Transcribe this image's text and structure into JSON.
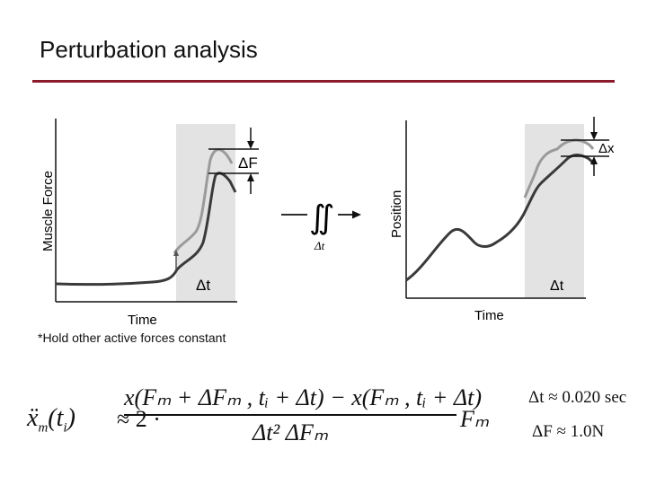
{
  "slide": {
    "title": "Perturbation analysis",
    "note": "*Hold other active forces constant"
  },
  "colors": {
    "rule": "#8b1a2b",
    "shade": "#e3e3e3",
    "trace_dark": "#3a3a3a",
    "trace_light": "#9a9a9a"
  },
  "left_plot": {
    "ylabel": "Muscle Force",
    "xlabel": "Time",
    "window_label": "Δt",
    "delta_label": "ΔF"
  },
  "operator": {
    "symbol": "∬",
    "label": "Δt"
  },
  "right_plot": {
    "ylabel": "Position",
    "xlabel": "Time",
    "window_label": "Δt",
    "delta_label": "Δx"
  },
  "equation": {
    "lhs_main": "ẍ",
    "lhs_sub": "m",
    "lhs_arg": "(t",
    "lhs_arg_sub": "i",
    "lhs_arg_close": ")",
    "approx": "≈ 2 ·",
    "numerator": "x(Fₘ + ΔFₘ , tᵢ + Δt) − x(Fₘ , tᵢ + Δt)",
    "denominator": "Δt² ΔFₘ",
    "rhs": "Fₘ"
  },
  "side_values": {
    "dt": "Δt ≈ 0.020 sec",
    "dF": "ΔF ≈ 1.0N"
  }
}
